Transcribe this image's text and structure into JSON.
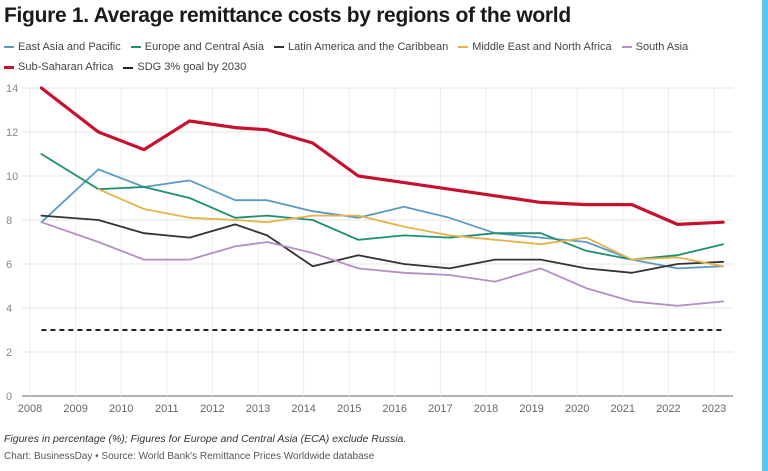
{
  "chart_data": {
    "type": "line",
    "title": "Figure 1. Average remittance costs by regions of the world",
    "xlabel": "",
    "ylabel": "",
    "xlim": [
      2008,
      2023.4
    ],
    "ylim": [
      0,
      14
    ],
    "x_ticks": [
      "2008",
      "2009",
      "2010",
      "2011",
      "2012",
      "2013",
      "2014",
      "2015",
      "2016",
      "2017",
      "2018",
      "2019",
      "2020",
      "2021",
      "2022",
      "2023"
    ],
    "y_ticks": [
      "0",
      "2",
      "4",
      "6",
      "8",
      "10",
      "12",
      "14"
    ],
    "grid": true,
    "legend_position": "top-left",
    "x": [
      2008.25,
      2009.5,
      2010.5,
      2011.5,
      2012.5,
      2013.2,
      2014.2,
      2015.2,
      2016.2,
      2017.2,
      2018.2,
      2019.2,
      2020.2,
      2021.2,
      2022.2,
      2023.2
    ],
    "series": [
      {
        "name": "East Asia and Pacific",
        "color": "#5a9bc4",
        "width": "thin",
        "values": [
          7.9,
          10.3,
          9.5,
          9.8,
          8.9,
          8.9,
          8.4,
          8.1,
          8.6,
          8.1,
          7.4,
          7.2,
          7.0,
          6.2,
          5.8,
          5.9
        ]
      },
      {
        "name": "Europe and Central Asia",
        "color": "#1f8f74",
        "width": "thin",
        "values": [
          11.0,
          9.4,
          9.5,
          9.0,
          8.1,
          8.2,
          8.0,
          7.1,
          7.3,
          7.2,
          7.4,
          7.4,
          6.6,
          6.2,
          6.4,
          6.9
        ]
      },
      {
        "name": "Latin America and the Caribbean",
        "color": "#333333",
        "width": "thin",
        "values": [
          8.2,
          8.0,
          7.4,
          7.2,
          7.8,
          7.3,
          5.9,
          6.4,
          6.0,
          5.8,
          6.2,
          6.2,
          5.8,
          5.6,
          6.0,
          6.1
        ]
      },
      {
        "name": "Middle East and North Africa",
        "color": "#e8b24a",
        "width": "thin",
        "values": [
          null,
          9.4,
          8.5,
          8.1,
          8.0,
          7.9,
          8.2,
          8.2,
          7.7,
          7.3,
          7.1,
          6.9,
          7.2,
          6.2,
          6.3,
          5.9
        ]
      },
      {
        "name": "South Asia",
        "color": "#b48fc4",
        "width": "thin",
        "values": [
          7.9,
          7.0,
          6.2,
          6.2,
          6.8,
          7.0,
          6.5,
          5.8,
          5.6,
          5.5,
          5.2,
          5.8,
          4.9,
          4.3,
          4.1,
          4.3
        ]
      },
      {
        "name": "Sub-Saharan Africa",
        "color": "#c8102e",
        "width": "thick",
        "values": [
          14.0,
          12.0,
          11.2,
          12.5,
          12.2,
          12.1,
          11.5,
          10.0,
          9.7,
          9.4,
          9.1,
          8.8,
          8.7,
          8.7,
          7.8,
          7.9
        ]
      },
      {
        "name": "SDG 3% goal by 2030",
        "color": "#222222",
        "width": "dashed",
        "constant": 3
      }
    ],
    "notes": "Figures in percentage (%); Figures for Europe and Central Asia (ECA) exclude Russia.",
    "source": "Chart: BusinessDay • Source: World Bank's Remittance Prices Worldwide database"
  }
}
